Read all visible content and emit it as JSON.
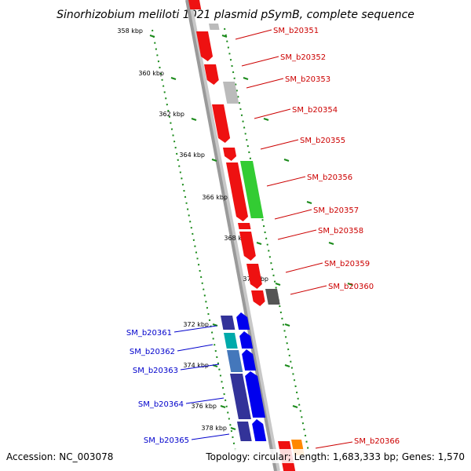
{
  "title": "Sinorhizobium meliloti 1021 plasmid pSymB, complete sequence",
  "footer": {
    "accession": "Accession: NC_003078",
    "summary": "Topology: circular; Length: 1,683,333 bp; Genes: 1,570"
  },
  "colors": {
    "backbone": "#9a9a9a",
    "ruler": "#1a8a1a",
    "forward_label": "#cc0000",
    "reverse_label": "#0000cc"
  },
  "ruler": {
    "unit": "kbp",
    "ticks": [
      "358 kbp",
      "360 kbp",
      "362 kbp",
      "364 kbp",
      "366 kbp",
      "368 kbp",
      "370 kbp",
      "372 kbp",
      "374 kbp",
      "376 kbp",
      "378 kbp"
    ]
  },
  "genes": [
    {
      "name": "SM_b20351",
      "strand": "+",
      "label_color": "#cc0000"
    },
    {
      "name": "SM_b20352",
      "strand": "+",
      "label_color": "#cc0000"
    },
    {
      "name": "SM_b20353",
      "strand": "+",
      "label_color": "#cc0000"
    },
    {
      "name": "SM_b20354",
      "strand": "+",
      "label_color": "#cc0000"
    },
    {
      "name": "SM_b20355",
      "strand": "+",
      "label_color": "#cc0000"
    },
    {
      "name": "SM_b20356",
      "strand": "+",
      "label_color": "#cc0000"
    },
    {
      "name": "SM_b20357",
      "strand": "+",
      "label_color": "#cc0000"
    },
    {
      "name": "SM_b20358",
      "strand": "+",
      "label_color": "#cc0000"
    },
    {
      "name": "SM_b20359",
      "strand": "+",
      "label_color": "#cc0000"
    },
    {
      "name": "SM_b20360",
      "strand": "+",
      "label_color": "#cc0000"
    },
    {
      "name": "SM_b20361",
      "strand": "-",
      "label_color": "#0000cc"
    },
    {
      "name": "SM_b20362",
      "strand": "-",
      "label_color": "#0000cc"
    },
    {
      "name": "SM_b20363",
      "strand": "-",
      "label_color": "#0000cc"
    },
    {
      "name": "SM_b20364",
      "strand": "-",
      "label_color": "#0000cc"
    },
    {
      "name": "SM_b20365",
      "strand": "-",
      "label_color": "#0000cc"
    },
    {
      "name": "SM_b20366",
      "strand": "+",
      "label_color": "#cc0000"
    }
  ]
}
